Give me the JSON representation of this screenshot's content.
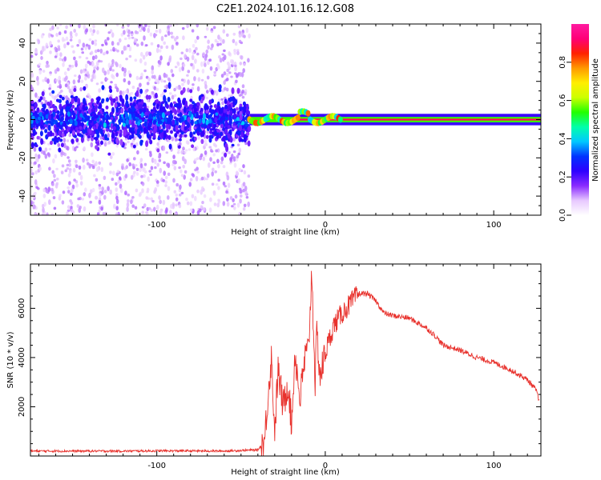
{
  "title": "C2E1.2024.101.16.12.G08",
  "colors": {
    "snr_line": "#e8312c",
    "scatter_base": "#7a1fff",
    "colormap": [
      "#ffffff",
      "#e7c8ff",
      "#8a2bff",
      "#2e00ff",
      "#0033ff",
      "#00c8ff",
      "#00ffaa",
      "#22ff00",
      "#ccff00",
      "#ffee00",
      "#ff9900",
      "#ff2200",
      "#ff0077",
      "#ff1ba0"
    ]
  },
  "chart_data": [
    {
      "type": "heatmap",
      "xlabel": "Height of straight line (km)",
      "ylabel": "Frequency (Hz)",
      "xlim": [
        -175,
        128
      ],
      "ylim": [
        -50,
        50
      ],
      "xticks": [
        -100,
        0,
        100
      ],
      "xtick_labels": [
        "-100",
        "0",
        "100"
      ],
      "yticks": [
        -40,
        -20,
        0,
        20,
        40
      ],
      "ytick_labels": [
        "-40",
        "-20",
        "0",
        "20",
        "40"
      ],
      "grid": false,
      "colorbar": {
        "label": "Normalized spectral amplitude",
        "range": [
          0,
          1
        ],
        "ticks": [
          0.0,
          0.2,
          0.4,
          0.6,
          0.8
        ],
        "tick_labels": [
          "0.0",
          "0.2",
          "0.4",
          "0.6",
          "0.8"
        ]
      },
      "regions": [
        {
          "x_range": [
            -175,
            -45
          ],
          "description_value": "broadband noise scatter, dense within ±10 Hz, amplitude 0.1-0.3"
        },
        {
          "x_range": [
            -45,
            128
          ],
          "center_freq_hz": 0,
          "half_width_hz": 3,
          "peak_amplitude": 0.9
        }
      ]
    },
    {
      "type": "line",
      "xlabel": "Height of straight line (km)",
      "ylabel": "SNR (10 * v/v)",
      "xlim": [
        -175,
        128
      ],
      "ylim": [
        0,
        7800
      ],
      "xticks": [
        -100,
        0,
        100
      ],
      "xtick_labels": [
        "-100",
        "0",
        "100"
      ],
      "yticks": [
        2000,
        4000,
        6000
      ],
      "ytick_labels": [
        "2000",
        "4000",
        "6000"
      ],
      "grid": false,
      "series": [
        {
          "x": [
            -175,
            -150,
            -120,
            -90,
            -60,
            -40,
            -36,
            -34,
            -32,
            -30,
            -28,
            -25,
            -22,
            -20,
            -18,
            -15,
            -12,
            -10,
            -8,
            -6,
            -5,
            -3,
            0,
            5,
            10,
            15,
            20,
            25,
            30,
            35,
            40,
            50,
            60,
            65,
            70,
            80,
            90,
            100,
            110,
            120,
            125,
            127
          ],
          "y": [
            200,
            200,
            200,
            210,
            200,
            250,
            600,
            2500,
            4000,
            1000,
            3500,
            2000,
            3000,
            1200,
            4200,
            2300,
            4000,
            4300,
            7500,
            3000,
            5000,
            3200,
            4200,
            5300,
            5800,
            6200,
            6600,
            6600,
            6300,
            5800,
            5700,
            5600,
            5200,
            4900,
            4500,
            4300,
            4000,
            3800,
            3500,
            3100,
            2700,
            2200
          ]
        }
      ]
    }
  ]
}
